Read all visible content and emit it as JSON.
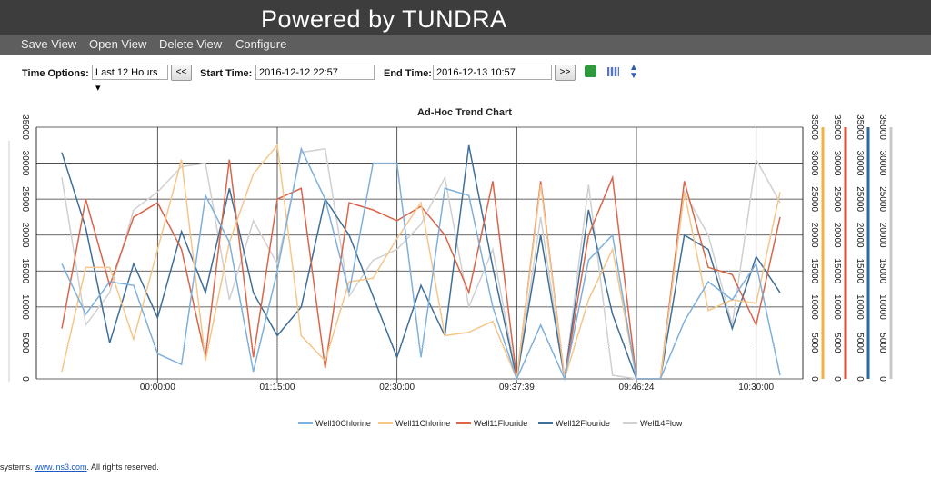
{
  "header": {
    "title": "Powered by TUNDRA"
  },
  "menu": [
    "Save View",
    "Open View",
    "Delete View",
    "Configure"
  ],
  "toolbar": {
    "time_options_label": "Time Options:",
    "time_option": "Last 12 Hours",
    "prev": "<<",
    "start_label": "Start Time:",
    "start_time": "2016-12-12 22:57",
    "end_label": "End Time:",
    "end_time": "2016-12-13 10:57",
    "next": ">>"
  },
  "chart_data": {
    "type": "line",
    "title": "Ad-Hoc Trend Chart",
    "categories": [
      null,
      null,
      null,
      null,
      "00:00:00",
      null,
      null,
      null,
      null,
      "01:15:00",
      null,
      null,
      null,
      null,
      "02:30:00",
      null,
      null,
      null,
      null,
      "09:37:39",
      null,
      null,
      null,
      null,
      "09:46:24",
      null,
      null,
      null,
      null,
      "10:30:00",
      null
    ],
    "ylim": [
      0,
      35000
    ],
    "yticks": [
      0,
      5000,
      10000,
      15000,
      20000,
      25000,
      30000,
      35000
    ],
    "grid": true,
    "right_axis_colors": [
      "#f5b041",
      "#d0553a",
      "#2a6aa0",
      "#c8c8c8"
    ],
    "legend": "bottom",
    "series": [
      {
        "name": "Well10Chlorine",
        "color": "#7fb0dc",
        "values": [
          16000,
          9000,
          13500,
          13000,
          3500,
          2000,
          25500,
          19000,
          1000,
          15000,
          32000,
          25000,
          12000,
          30000,
          30000,
          3000,
          26500,
          25500,
          10000,
          0,
          7500,
          0,
          16500,
          20000,
          0,
          0,
          8000,
          13500,
          11000,
          16000,
          500
        ]
      },
      {
        "name": "Well11Chlorine",
        "color": "#f5c68a",
        "values": [
          1000,
          15500,
          15500,
          5500,
          18000,
          30500,
          2500,
          19000,
          28500,
          32500,
          6000,
          2500,
          13500,
          14000,
          19500,
          24500,
          6000,
          6500,
          8000,
          0,
          27000,
          0,
          11000,
          18000,
          0,
          0,
          26000,
          9500,
          11000,
          10500,
          26000
        ]
      },
      {
        "name": "Well11Flouride",
        "color": "#d9664a",
        "values": [
          7000,
          25000,
          13000,
          22500,
          24500,
          18000,
          3000,
          30500,
          3000,
          25000,
          26500,
          1500,
          24500,
          23500,
          22000,
          24000,
          20000,
          12000,
          27500,
          0,
          27500,
          0,
          20000,
          28000,
          0,
          0,
          27500,
          15500,
          14500,
          7500,
          22500
        ]
      },
      {
        "name": "Well12Flouride",
        "color": "#3f6f99",
        "values": [
          31500,
          21000,
          5000,
          16000,
          8500,
          20500,
          12000,
          26500,
          12000,
          6000,
          10000,
          25000,
          20000,
          11500,
          3000,
          13000,
          6000,
          32500,
          15500,
          0,
          20000,
          0,
          23500,
          9000,
          0,
          0,
          20000,
          18000,
          7000,
          17000,
          12000
        ]
      },
      {
        "name": "Well14Flow",
        "color": "#d0d0d0",
        "values": [
          28000,
          7500,
          12000,
          23500,
          26000,
          29500,
          30000,
          11000,
          22000,
          16000,
          31500,
          32000,
          11500,
          16500,
          18000,
          21500,
          28000,
          10000,
          18000,
          0,
          22500,
          0,
          27000,
          500,
          0,
          0,
          26000,
          20000,
          7500,
          30500,
          24500
        ]
      }
    ]
  },
  "footer": {
    "pre": "systems.",
    "link": "www.ins3.com",
    "post": ". All rights reserved."
  }
}
